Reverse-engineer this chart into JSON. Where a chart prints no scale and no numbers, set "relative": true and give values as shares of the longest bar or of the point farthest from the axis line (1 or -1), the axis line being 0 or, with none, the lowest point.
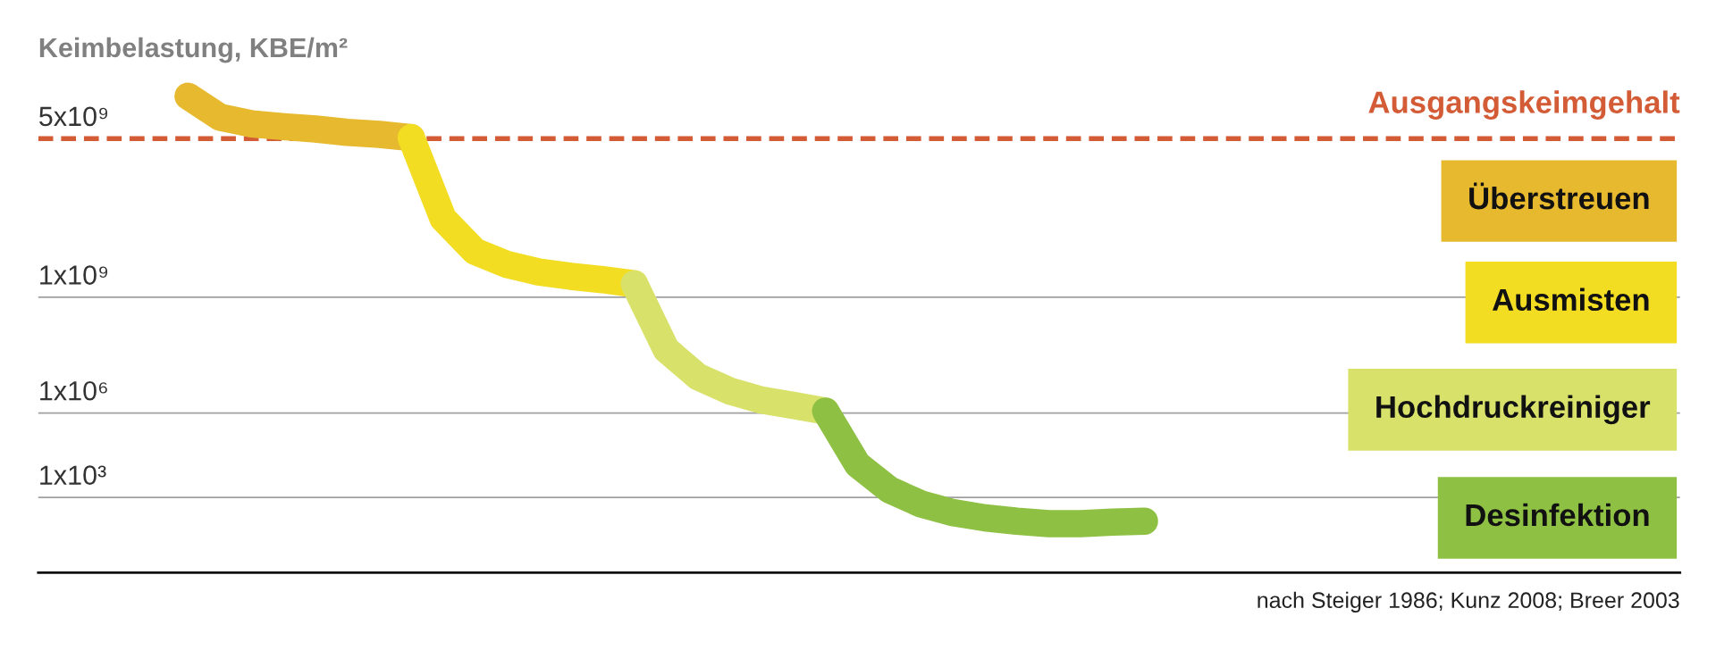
{
  "chart_data": {
    "type": "line",
    "relative": true,
    "ylabel": "Keimbelastung, KBE/m²",
    "categories": [
      null,
      null,
      null,
      null,
      null,
      null,
      null,
      null,
      null,
      null,
      null,
      null,
      null,
      null,
      null,
      null,
      null,
      null,
      null,
      null,
      null,
      null,
      null,
      null,
      null,
      null,
      null,
      null,
      null,
      null,
      null
    ],
    "series": [
      {
        "name": "Überstreuen",
        "color": "#e6b92e",
        "values": [
          1.0,
          0.956,
          0.942,
          0.936,
          0.931,
          0.924,
          0.92,
          0.913,
          null,
          null,
          null,
          null,
          null,
          null,
          null,
          null,
          null,
          null,
          null,
          null,
          null,
          null,
          null,
          null,
          null,
          null,
          null,
          null,
          null,
          null,
          null
        ]
      },
      {
        "name": "Ausmisten",
        "color": "#f2dd22",
        "values": [
          null,
          null,
          null,
          null,
          null,
          null,
          null,
          0.913,
          0.743,
          0.674,
          0.647,
          0.631,
          0.622,
          0.615,
          0.606,
          null,
          null,
          null,
          null,
          null,
          null,
          null,
          null,
          null,
          null,
          null,
          null,
          null,
          null,
          null,
          null
        ]
      },
      {
        "name": "Hochdruckreiniger",
        "color": "#d8e26a",
        "values": [
          null,
          null,
          null,
          null,
          null,
          null,
          null,
          null,
          null,
          null,
          null,
          null,
          null,
          null,
          0.606,
          0.468,
          0.411,
          0.381,
          0.362,
          0.351,
          0.339,
          null,
          null,
          null,
          null,
          null,
          null,
          null,
          null,
          null,
          null
        ]
      },
      {
        "name": "Desinfektion",
        "color": "#8ec043",
        "values": [
          null,
          null,
          null,
          null,
          null,
          null,
          null,
          null,
          null,
          null,
          null,
          null,
          null,
          null,
          null,
          null,
          null,
          null,
          null,
          null,
          0.339,
          0.227,
          0.174,
          0.144,
          0.126,
          0.115,
          0.108,
          0.103,
          0.103,
          0.106,
          0.108
        ]
      }
    ],
    "ref_lines": [
      {
        "axis": "y",
        "value": 0.911,
        "label": "Ausgangskeimgehalt",
        "color": "#d35b35",
        "line_style": "dashed"
      },
      {
        "axis": "y",
        "value": 0.578,
        "color": "#a0a0a0",
        "line_style": "solid"
      },
      {
        "axis": "y",
        "value": 0.335,
        "color": "#a0a0a0",
        "line_style": "solid"
      },
      {
        "axis": "y",
        "value": 0.158,
        "color": "#a0a0a0",
        "line_style": "solid"
      }
    ],
    "annotations": [
      {
        "text": "5x10⁹",
        "y": 0.911
      },
      {
        "text": "1x10⁹",
        "y": 0.578
      },
      {
        "text": "1x10⁶",
        "y": 0.335
      },
      {
        "text": "1x10³",
        "y": 0.158
      },
      "nach Steiger 1986; Kunz 2008; Breer 2003"
    ],
    "legend": "right",
    "grid": false,
    "line_style": "solid"
  }
}
